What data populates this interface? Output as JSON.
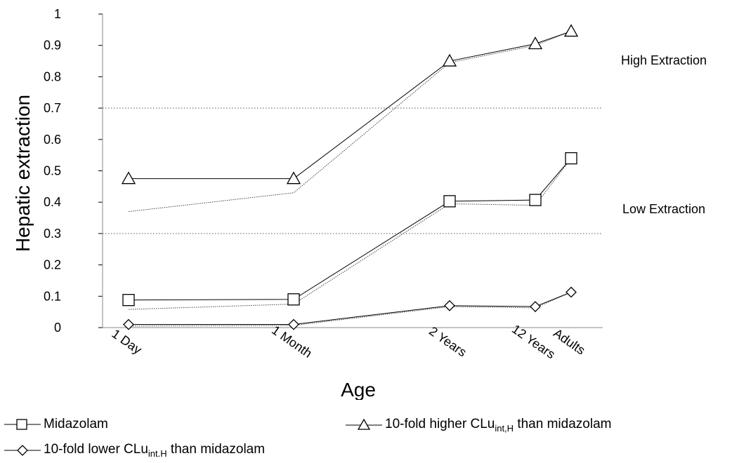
{
  "chart_data": {
    "type": "line",
    "title": "",
    "xlabel": "Age",
    "ylabel": "Hepatic extraction",
    "categories": [
      "1 Day",
      "1 Month",
      "2 Years",
      "12 Years",
      "Adults"
    ],
    "ylim": [
      0,
      1
    ],
    "yticks": [
      "0",
      "0.1",
      "0.2",
      "0.3",
      "0.4",
      "0.5",
      "0.6",
      "0.7",
      "0.8",
      "0.9",
      "1"
    ],
    "threshold_lines": [
      0.7,
      0.3
    ],
    "annotations": [
      "High Extraction",
      "Low Extraction"
    ],
    "series": [
      {
        "name": "Midazolam",
        "marker": "square",
        "values": [
          0.088,
          0.09,
          0.403,
          0.407,
          0.54
        ],
        "dotted_values": [
          0.058,
          0.075,
          0.395,
          0.39,
          0.54
        ]
      },
      {
        "name": "10-fold higher CLuint,H than midazolam",
        "marker": "triangle",
        "values": [
          0.475,
          0.475,
          0.85,
          0.905,
          0.945
        ],
        "dotted_values": [
          0.37,
          0.43,
          0.845,
          0.9,
          0.945
        ]
      },
      {
        "name": "10-fold lower CLuint.H than midazolam",
        "marker": "diamond",
        "values": [
          0.01,
          0.01,
          0.07,
          0.067,
          0.113
        ],
        "dotted_values": [
          0.005,
          0.007,
          0.067,
          0.063,
          0.113
        ]
      }
    ]
  },
  "legend": {
    "midazolam": "Midazolam",
    "higher_prefix": "10-fold higher CLu",
    "higher_sub": "int,H",
    "higher_suffix": " than midazolam",
    "lower_prefix": "10-fold lower CLu",
    "lower_sub": "int.H",
    "lower_suffix": " than midazolam"
  }
}
